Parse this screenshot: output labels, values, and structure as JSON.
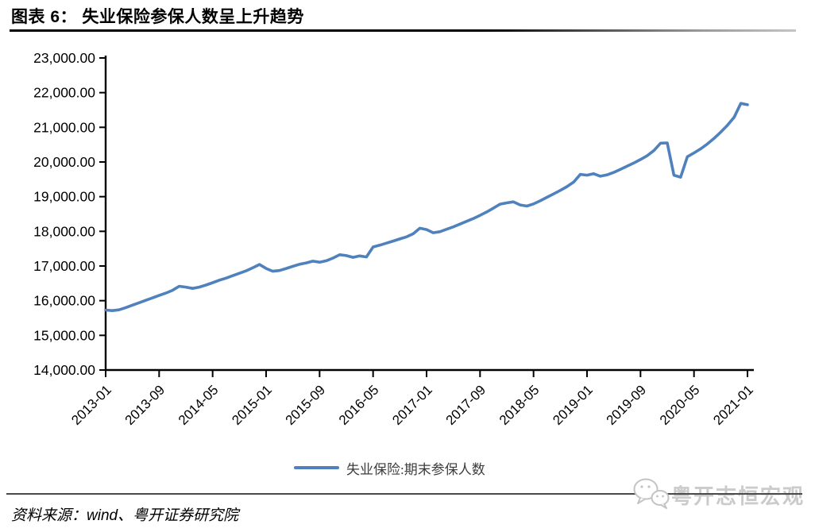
{
  "header": {
    "title": "图表 6： 失业保险参保人数呈上升趋势"
  },
  "legend": {
    "label": "失业保险:期末参保人数",
    "line_color": "#4F81BD"
  },
  "footer": {
    "source": "资料来源：wind、粤开证券研究院",
    "watermark": "粤开志恒宏观"
  },
  "chart_data": {
    "type": "line",
    "title": "失业保险参保人数呈上升趋势",
    "xlabel": "",
    "ylabel": "",
    "ylim": [
      14000,
      23000
    ],
    "grid": false,
    "legend_position": "bottom",
    "x_unit": "month",
    "x_tick_labels": [
      "2013-01",
      "2013-09",
      "2014-05",
      "2015-01",
      "2015-09",
      "2016-05",
      "2017-01",
      "2017-09",
      "2018-05",
      "2019-01",
      "2019-09",
      "2020-05",
      "2021-01"
    ],
    "x_tick_indices": [
      0,
      8,
      16,
      24,
      32,
      40,
      48,
      56,
      64,
      72,
      80,
      88,
      96
    ],
    "y_ticks": [
      14000,
      15000,
      16000,
      17000,
      18000,
      19000,
      20000,
      21000,
      22000,
      23000
    ],
    "y_tick_labels": [
      "14,000.00",
      "15,000.00",
      "16,000.00",
      "17,000.00",
      "18,000.00",
      "19,000.00",
      "20,000.00",
      "21,000.00",
      "22,000.00",
      "23,000.00"
    ],
    "series": [
      {
        "name": "失业保险:期末参保人数",
        "color": "#4F81BD",
        "x_start": "2013-01",
        "x_end": "2021-01",
        "values": [
          15730,
          15712,
          15735,
          15800,
          15870,
          15940,
          16010,
          16080,
          16150,
          16220,
          16300,
          16417,
          16390,
          16355,
          16390,
          16450,
          16520,
          16590,
          16650,
          16720,
          16790,
          16860,
          16950,
          17043,
          16930,
          16850,
          16870,
          16930,
          16990,
          17050,
          17090,
          17140,
          17110,
          17150,
          17230,
          17326,
          17300,
          17250,
          17290,
          17260,
          17550,
          17600,
          17660,
          17720,
          17780,
          17840,
          17930,
          18089,
          18050,
          17960,
          17990,
          18060,
          18130,
          18210,
          18290,
          18370,
          18460,
          18560,
          18670,
          18784,
          18820,
          18850,
          18760,
          18730,
          18790,
          18880,
          18980,
          19080,
          19180,
          19290,
          19420,
          19643,
          19620,
          19660,
          19590,
          19630,
          19700,
          19790,
          19880,
          19970,
          20070,
          20180,
          20330,
          20543,
          20550,
          19620,
          19560,
          20150,
          20260,
          20380,
          20520,
          20680,
          20860,
          21060,
          21290,
          21689,
          21650
        ]
      }
    ]
  }
}
